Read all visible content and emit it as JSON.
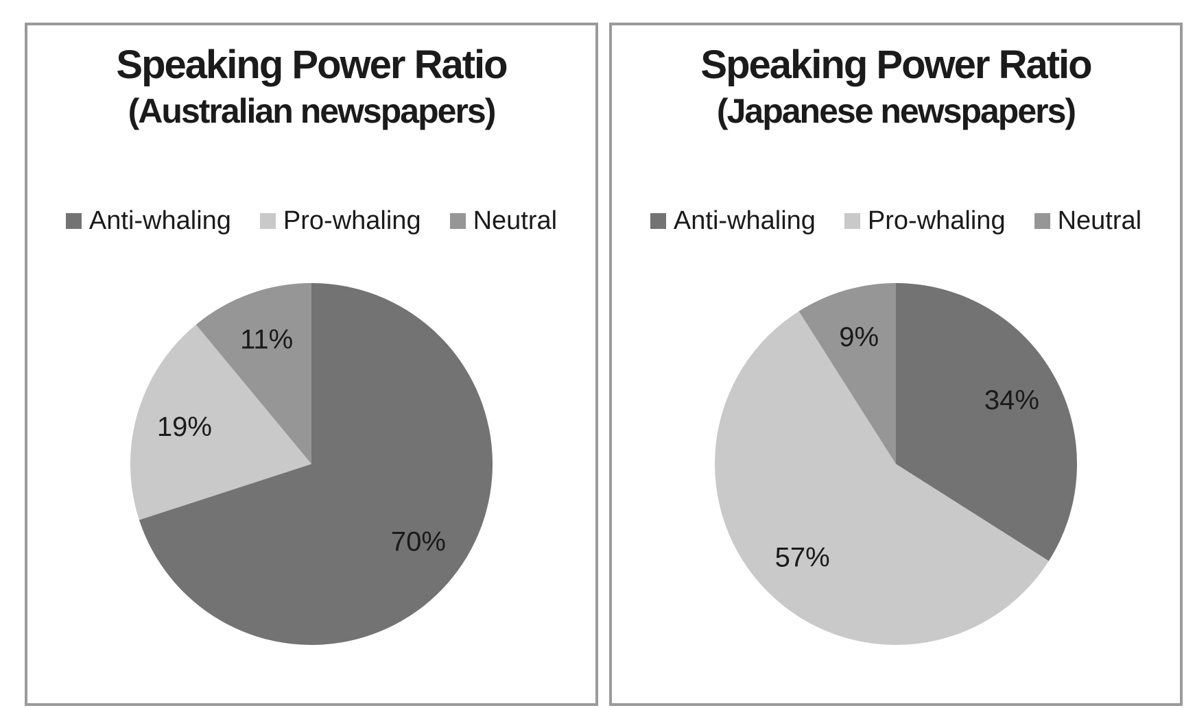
{
  "page": {
    "background_color": "#ffffff",
    "panel_border_color": "#9a9a9a",
    "text_color": "#1a1a1a"
  },
  "panels": [
    {
      "title_line1": "Speaking Power Ratio",
      "title_line2": "(Australian newspapers)",
      "legend": [
        {
          "label": "Anti-whaling",
          "color": "#737373"
        },
        {
          "label": "Pro-whaling",
          "color": "#c9c9c9"
        },
        {
          "label": "Neutral",
          "color": "#969696"
        }
      ]
    },
    {
      "title_line1": "Speaking Power Ratio",
      "title_line2": "(Japanese newspapers)",
      "legend": [
        {
          "label": "Anti-whaling",
          "color": "#737373"
        },
        {
          "label": "Pro-whaling",
          "color": "#c9c9c9"
        },
        {
          "label": "Neutral",
          "color": "#969696"
        }
      ]
    }
  ],
  "chart_data": [
    {
      "type": "pie",
      "title": "Speaking Power Ratio (Australian newspapers)",
      "categories": [
        "Anti-whaling",
        "Pro-whaling",
        "Neutral"
      ],
      "values": [
        70,
        19,
        11
      ],
      "unit": "%",
      "data_labels": [
        "70%",
        "19%",
        "11%"
      ],
      "colors": [
        "#737373",
        "#c9c9c9",
        "#969696"
      ],
      "start_angle_deg": 0,
      "direction": "clockwise",
      "legend_position": "top",
      "label_radius_ratio": 0.73
    },
    {
      "type": "pie",
      "title": "Speaking Power Ratio (Japanese newspapers)",
      "categories": [
        "Anti-whaling",
        "Pro-whaling",
        "Neutral"
      ],
      "values": [
        34,
        57,
        9
      ],
      "unit": "%",
      "data_labels": [
        "34%",
        "57%",
        "9%"
      ],
      "colors": [
        "#737373",
        "#c9c9c9",
        "#969696"
      ],
      "start_angle_deg": 0,
      "direction": "clockwise",
      "legend_position": "top",
      "label_radius_ratio": 0.73
    }
  ]
}
